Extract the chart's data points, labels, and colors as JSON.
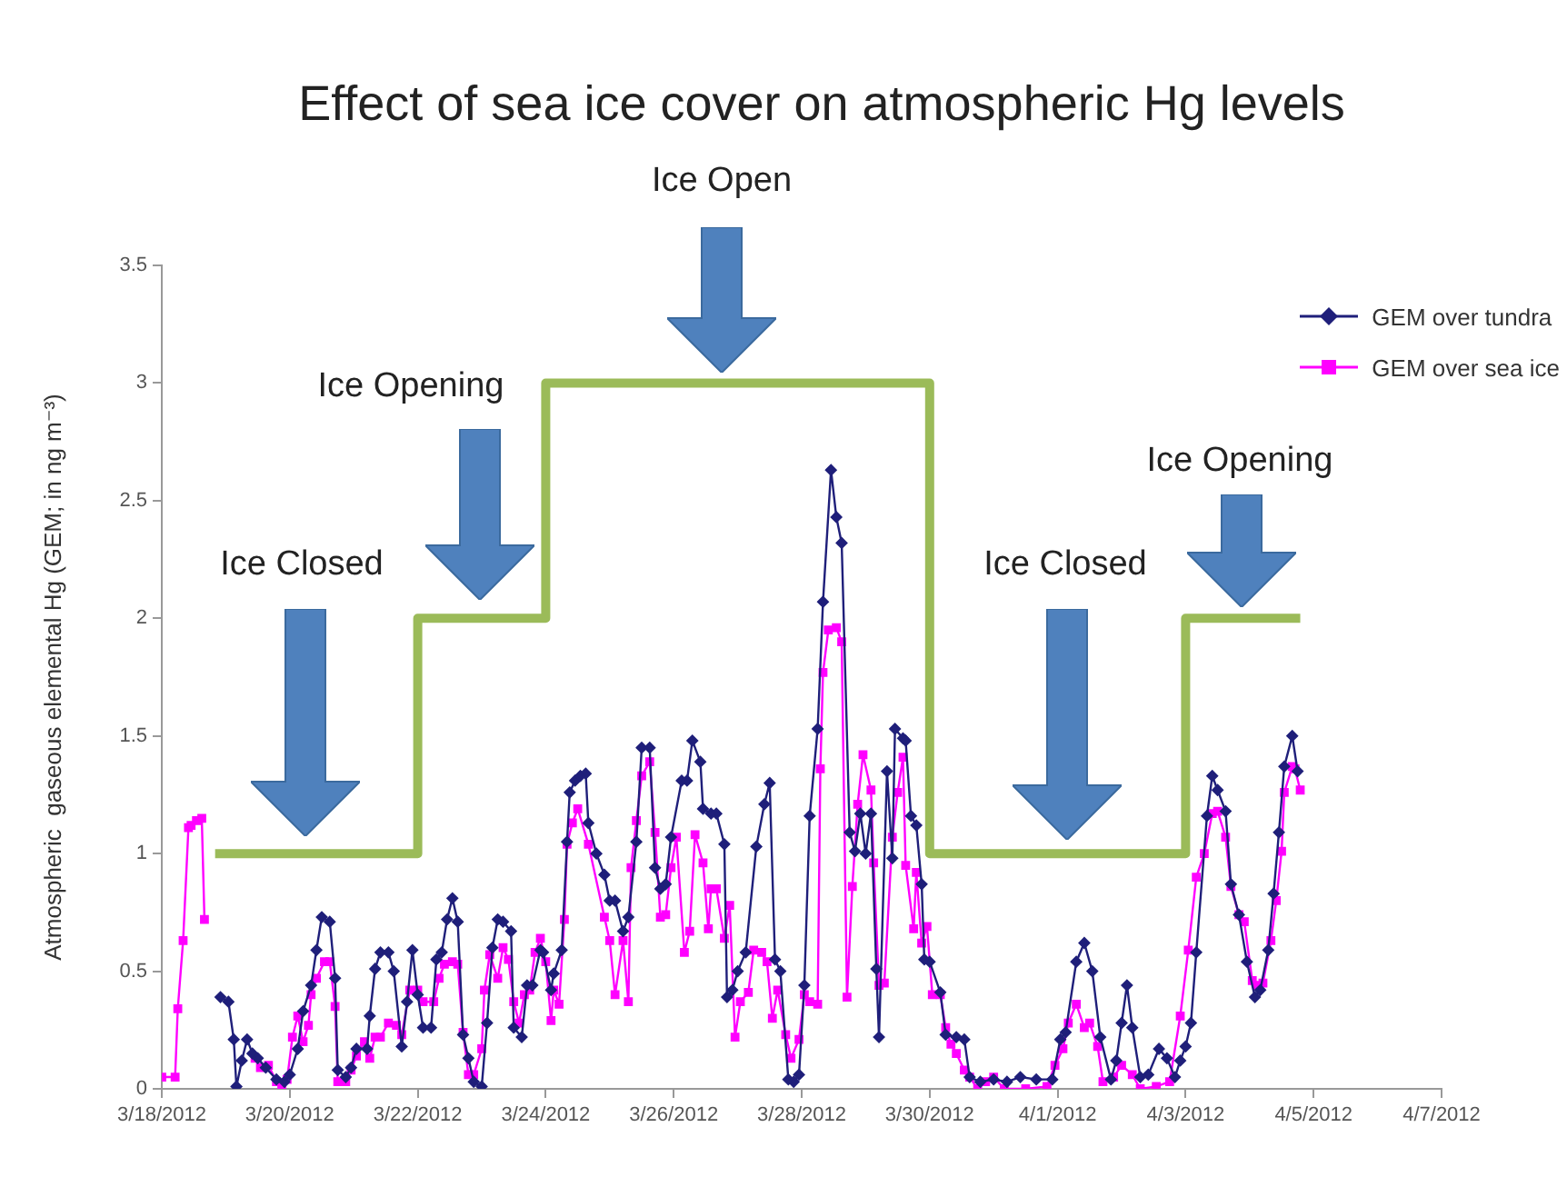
{
  "chart_data": {
    "type": "line",
    "title": "Effect of sea ice cover on atmospheric Hg levels",
    "ylabel": "Atmospheric  gaseous elemental Hg (GEM; in ng m⁻³)",
    "legend": "top right",
    "xlim": [
      "2012-03-18",
      "2012-04-07"
    ],
    "xticks": [
      {
        "value": "2012-03-18",
        "label": "3/18/2012"
      },
      {
        "value": "2012-03-20",
        "label": "3/20/2012"
      },
      {
        "value": "2012-03-22",
        "label": "3/22/2012"
      },
      {
        "value": "2012-03-24",
        "label": "3/24/2012"
      },
      {
        "value": "2012-03-26",
        "label": "3/26/2012"
      },
      {
        "value": "2012-03-28",
        "label": "3/28/2012"
      },
      {
        "value": "2012-03-30",
        "label": "3/30/2012"
      },
      {
        "value": "2012-04-01",
        "label": "4/1/2012"
      },
      {
        "value": "2012-04-03",
        "label": "4/3/2012"
      },
      {
        "value": "2012-04-05",
        "label": "4/5/2012"
      },
      {
        "value": "2012-04-07",
        "label": "4/7/2012"
      }
    ],
    "ylim": [
      0,
      3.5
    ],
    "yticks": [
      0,
      0.5,
      1,
      1.5,
      2,
      2.5,
      3,
      3.5
    ],
    "annotations": [
      "Ice Closed",
      "Ice Opening",
      "Ice Open",
      "Ice Closed",
      "Ice Opening"
    ],
    "series": [
      {
        "type": "step",
        "color": "#9bbb59",
        "x": [
          "2012-03-18T20:00",
          "2012-03-22T00:00",
          "2012-03-24T00:00",
          "2012-03-30T00:00",
          "2012-04-03T00:00",
          "2012-04-04T19:00"
        ],
        "values": [
          1,
          2,
          3,
          1,
          2,
          2
        ]
      },
      {
        "type": "line",
        "name": "GEM over tundra",
        "color": "#1f1f7a",
        "marker": "diamond",
        "x": [
          "2012-03-18T22:00",
          "2012-03-19T01:00",
          "2012-03-19T03:00",
          "2012-03-19T04:00",
          "2012-03-19T06:00",
          "2012-03-19T08:00",
          "2012-03-19T10:00",
          "2012-03-19T12:00",
          "2012-03-19T15:00",
          "2012-03-19T19:00",
          "2012-03-19T22:00",
          "2012-03-20T00:00",
          "2012-03-20T03:00",
          "2012-03-20T05:00",
          "2012-03-20T08:00",
          "2012-03-20T10:00",
          "2012-03-20T12:00",
          "2012-03-20T15:00",
          "2012-03-20T17:00",
          "2012-03-20T18:00",
          "2012-03-20T21:00",
          "2012-03-20T23:00",
          "2012-03-21T01:00",
          "2012-03-21T05:00",
          "2012-03-21T06:00",
          "2012-03-21T08:00",
          "2012-03-21T10:00",
          "2012-03-21T13:00",
          "2012-03-21T15:00",
          "2012-03-21T18:00",
          "2012-03-21T20:00",
          "2012-03-21T22:00",
          "2012-03-22T00:00",
          "2012-03-22T02:00",
          "2012-03-22T05:00",
          "2012-03-22T07:00",
          "2012-03-22T09:00",
          "2012-03-22T11:00",
          "2012-03-22T13:00",
          "2012-03-22T15:00",
          "2012-03-22T17:00",
          "2012-03-22T19:00",
          "2012-03-22T21:00",
          "2012-03-23T00:00",
          "2012-03-23T02:00",
          "2012-03-23T04:00",
          "2012-03-23T06:00",
          "2012-03-23T08:00",
          "2012-03-23T11:00",
          "2012-03-23T12:00",
          "2012-03-23T15:00",
          "2012-03-23T17:00",
          "2012-03-23T19:00",
          "2012-03-23T22:00",
          "2012-03-23T23:00",
          "2012-03-24T02:00",
          "2012-03-24T03:00",
          "2012-03-24T06:00",
          "2012-03-24T08:00",
          "2012-03-24T09:00",
          "2012-03-24T11:00",
          "2012-03-24T13:00",
          "2012-03-24T15:00",
          "2012-03-24T16:00",
          "2012-03-24T19:00",
          "2012-03-24T22:00",
          "2012-03-25T00:00",
          "2012-03-25T02:00",
          "2012-03-25T05:00",
          "2012-03-25T07:00",
          "2012-03-25T10:00",
          "2012-03-25T12:00",
          "2012-03-25T15:00",
          "2012-03-25T17:00",
          "2012-03-25T19:00",
          "2012-03-25T21:00",
          "2012-03-25T23:00",
          "2012-03-26T03:00",
          "2012-03-26T05:00",
          "2012-03-26T07:00",
          "2012-03-26T10:00",
          "2012-03-26T11:00",
          "2012-03-26T14:00",
          "2012-03-26T16:00",
          "2012-03-26T19:00",
          "2012-03-26T20:00",
          "2012-03-26T22:00",
          "2012-03-27T00:00",
          "2012-03-27T03:00",
          "2012-03-27T07:00",
          "2012-03-27T10:00",
          "2012-03-27T12:00",
          "2012-03-27T14:00",
          "2012-03-27T16:00",
          "2012-03-27T19:00",
          "2012-03-27T21:00",
          "2012-03-27T23:00",
          "2012-03-28T01:00",
          "2012-03-28T03:00",
          "2012-03-28T06:00",
          "2012-03-28T08:00",
          "2012-03-28T11:00",
          "2012-03-28T13:00",
          "2012-03-28T15:00",
          "2012-03-28T18:00",
          "2012-03-28T20:00",
          "2012-03-28T22:00",
          "2012-03-29T00:00",
          "2012-03-29T02:00",
          "2012-03-29T04:00",
          "2012-03-29T05:00",
          "2012-03-29T08:00",
          "2012-03-29T10:00",
          "2012-03-29T11:00",
          "2012-03-29T14:00",
          "2012-03-29T15:00",
          "2012-03-29T17:00",
          "2012-03-29T19:00",
          "2012-03-29T21:00",
          "2012-03-29T22:00",
          "2012-03-30T00:00",
          "2012-03-30T04:00",
          "2012-03-30T06:00",
          "2012-03-30T10:00",
          "2012-03-30T13:00",
          "2012-03-30T15:00",
          "2012-03-30T19:00",
          "2012-03-31T00:00",
          "2012-03-31T05:00",
          "2012-03-31T10:00",
          "2012-03-31T16:00",
          "2012-03-31T22:00",
          "2012-04-01T01:00",
          "2012-04-01T03:00",
          "2012-04-01T07:00",
          "2012-04-01T10:00",
          "2012-04-01T13:00",
          "2012-04-01T16:00",
          "2012-04-01T20:00",
          "2012-04-01T22:00",
          "2012-04-02T00:00",
          "2012-04-02T02:00",
          "2012-04-02T04:00",
          "2012-04-02T07:00",
          "2012-04-02T10:00",
          "2012-04-02T14:00",
          "2012-04-02T17:00",
          "2012-04-02T20:00",
          "2012-04-02T22:00",
          "2012-04-03T00:00",
          "2012-04-03T02:00",
          "2012-04-03T04:00",
          "2012-04-03T08:00",
          "2012-04-03T10:00",
          "2012-04-03T12:00",
          "2012-04-03T15:00",
          "2012-04-03T17:00",
          "2012-04-03T20:00",
          "2012-04-03T23:00",
          "2012-04-04T02:00",
          "2012-04-04T04:00",
          "2012-04-04T07:00",
          "2012-04-04T09:00",
          "2012-04-04T11:00",
          "2012-04-04T13:00",
          "2012-04-04T16:00",
          "2012-04-04T18:00"
        ],
        "values": [
          0.39,
          0.37,
          0.21,
          0.01,
          0.12,
          0.21,
          0.15,
          0.13,
          0.09,
          0.04,
          0.03,
          0.06,
          0.17,
          0.33,
          0.44,
          0.59,
          0.73,
          0.71,
          0.47,
          0.08,
          0.05,
          0.09,
          0.17,
          0.17,
          0.31,
          0.51,
          0.58,
          0.58,
          0.5,
          0.18,
          0.37,
          0.59,
          0.4,
          0.26,
          0.26,
          0.55,
          0.58,
          0.72,
          0.81,
          0.71,
          0.23,
          0.13,
          0.03,
          0.01,
          0.28,
          0.6,
          0.72,
          0.71,
          0.67,
          0.26,
          0.22,
          0.44,
          0.44,
          0.59,
          0.58,
          0.42,
          0.49,
          0.59,
          1.05,
          1.26,
          1.31,
          1.33,
          1.34,
          1.13,
          1.0,
          0.91,
          0.8,
          0.8,
          0.67,
          0.73,
          1.05,
          1.45,
          1.45,
          0.94,
          0.85,
          0.87,
          1.07,
          1.31,
          1.31,
          1.48,
          1.39,
          1.19,
          1.17,
          1.17,
          1.04,
          0.39,
          0.42,
          0.5,
          0.58,
          1.03,
          1.21,
          1.3,
          0.55,
          0.5,
          0.04,
          0.03,
          0.06,
          0.44,
          1.16,
          1.53,
          2.07,
          2.63,
          2.43,
          2.32,
          1.09,
          1.01,
          1.17,
          1.0,
          1.17,
          0.51,
          0.22,
          1.35,
          0.98,
          1.53,
          1.49,
          1.48,
          1.16,
          1.12,
          0.87,
          0.55,
          0.54,
          0.41,
          0.23,
          0.22,
          0.21,
          0.05,
          0.03,
          0.04,
          0.03,
          0.05,
          0.04,
          0.04,
          0.21,
          0.24,
          0.54,
          0.62,
          0.5,
          0.22,
          0.04,
          0.12,
          0.28,
          0.44,
          0.26,
          0.05,
          0.06,
          0.17,
          0.13,
          0.05,
          0.12,
          0.18,
          0.28,
          0.58,
          1.16,
          1.33,
          1.27,
          1.18,
          0.87,
          0.74,
          0.54,
          0.39,
          0.42,
          0.59,
          0.83,
          1.09,
          1.37,
          1.5,
          1.35
        ]
      },
      {
        "type": "line",
        "name": "GEM over sea ice",
        "color": "#ff00ff",
        "marker": "square",
        "x": [
          "2012-03-18T00:00",
          "2012-03-18T05:00",
          "2012-03-18T06:00",
          "2012-03-18T08:00",
          "2012-03-18T10:00",
          "2012-03-18T11:00",
          "2012-03-18T13:00",
          "2012-03-18T15:00",
          "2012-03-18T16:00",
          "2012-03-19T00:00",
          "2012-03-19T11:00",
          "2012-03-19T13:00",
          "2012-03-19T16:00",
          "2012-03-19T19:00",
          "2012-03-19T21:00",
          "2012-03-19T23:00",
          "2012-03-20T01:00",
          "2012-03-20T03:00",
          "2012-03-20T05:00",
          "2012-03-20T07:00",
          "2012-03-20T08:00",
          "2012-03-20T10:00",
          "2012-03-20T13:00",
          "2012-03-20T15:00",
          "2012-03-20T17:00",
          "2012-03-20T18:00",
          "2012-03-20T21:00",
          "2012-03-20T23:00",
          "2012-03-21T01:00",
          "2012-03-21T04:00",
          "2012-03-21T06:00",
          "2012-03-21T08:00",
          "2012-03-21T10:00",
          "2012-03-21T13:00",
          "2012-03-21T16:00",
          "2012-03-21T18:00",
          "2012-03-21T21:00",
          "2012-03-22T00:00",
          "2012-03-22T02:00",
          "2012-03-22T06:00",
          "2012-03-22T08:00",
          "2012-03-22T10:00",
          "2012-03-22T13:00",
          "2012-03-22T15:00",
          "2012-03-22T17:00",
          "2012-03-22T19:00",
          "2012-03-22T21:00",
          "2012-03-23T00:00",
          "2012-03-23T01:00",
          "2012-03-23T03:00",
          "2012-03-23T06:00",
          "2012-03-23T08:00",
          "2012-03-23T10:00",
          "2012-03-23T12:00",
          "2012-03-23T14:00",
          "2012-03-23T16:00",
          "2012-03-23T18:00",
          "2012-03-23T20:00",
          "2012-03-23T22:00",
          "2012-03-24T00:00",
          "2012-03-24T02:00",
          "2012-03-24T03:00",
          "2012-03-24T05:00",
          "2012-03-24T07:00",
          "2012-03-24T08:00",
          "2012-03-24T10:00",
          "2012-03-24T12:00",
          "2012-03-24T16:00",
          "2012-03-24T22:00",
          "2012-03-25T00:00",
          "2012-03-25T02:00",
          "2012-03-25T05:00",
          "2012-03-25T07:00",
          "2012-03-25T08:00",
          "2012-03-25T10:00",
          "2012-03-25T12:00",
          "2012-03-25T15:00",
          "2012-03-25T17:00",
          "2012-03-25T19:00",
          "2012-03-25T21:00",
          "2012-03-25T23:00",
          "2012-03-26T01:00",
          "2012-03-26T04:00",
          "2012-03-26T06:00",
          "2012-03-26T08:00",
          "2012-03-26T11:00",
          "2012-03-26T13:00",
          "2012-03-26T14:00",
          "2012-03-26T16:00",
          "2012-03-26T19:00",
          "2012-03-26T21:00",
          "2012-03-26T23:00",
          "2012-03-27T01:00",
          "2012-03-27T04:00",
          "2012-03-27T06:00",
          "2012-03-27T09:00",
          "2012-03-27T11:00",
          "2012-03-27T13:00",
          "2012-03-27T15:00",
          "2012-03-27T18:00",
          "2012-03-27T20:00",
          "2012-03-27T23:00",
          "2012-03-28T01:00",
          "2012-03-28T03:00",
          "2012-03-28T06:00",
          "2012-03-28T07:00",
          "2012-03-28T08:00",
          "2012-03-28T10:00",
          "2012-03-28T13:00",
          "2012-03-28T15:00",
          "2012-03-28T17:00",
          "2012-03-28T19:00",
          "2012-03-28T21:00",
          "2012-03-28T23:00",
          "2012-03-29T02:00",
          "2012-03-29T03:00",
          "2012-03-29T05:00",
          "2012-03-29T07:00",
          "2012-03-29T10:00",
          "2012-03-29T12:00",
          "2012-03-29T14:00",
          "2012-03-29T15:00",
          "2012-03-29T18:00",
          "2012-03-29T19:00",
          "2012-03-29T21:00",
          "2012-03-29T23:00",
          "2012-03-30T01:00",
          "2012-03-30T04:00",
          "2012-03-30T06:00",
          "2012-03-30T08:00",
          "2012-03-30T10:00",
          "2012-03-30T13:00",
          "2012-03-30T15:00",
          "2012-03-30T18:00",
          "2012-03-30T21:00",
          "2012-03-31T00:00",
          "2012-03-31T04:00",
          "2012-03-31T12:00",
          "2012-03-31T20:00",
          "2012-03-31T23:00",
          "2012-04-01T02:00",
          "2012-04-01T04:00",
          "2012-04-01T07:00",
          "2012-04-01T10:00",
          "2012-04-01T12:00",
          "2012-04-01T15:00",
          "2012-04-01T17:00",
          "2012-04-01T21:00",
          "2012-04-02T00:00",
          "2012-04-02T04:00",
          "2012-04-02T07:00",
          "2012-04-02T13:00",
          "2012-04-02T18:00",
          "2012-04-02T22:00",
          "2012-04-03T01:00",
          "2012-04-03T04:00",
          "2012-04-03T07:00",
          "2012-04-03T10:00",
          "2012-04-03T12:00",
          "2012-04-03T15:00",
          "2012-04-03T17:00",
          "2012-04-03T20:00",
          "2012-04-03T22:00",
          "2012-04-04T01:00",
          "2012-04-04T03:00",
          "2012-04-04T05:00",
          "2012-04-04T08:00",
          "2012-04-04T10:00",
          "2012-04-04T12:00",
          "2012-04-04T13:00",
          "2012-04-04T16:00",
          "2012-04-04T17:00",
          "2012-04-04T19:00"
        ],
        "values": [
          0.05,
          0.05,
          0.34,
          0.63,
          1.11,
          1.12,
          1.14,
          1.15,
          0.72,
          null,
          0.13,
          0.09,
          0.1,
          0.03,
          0.0,
          0.04,
          0.22,
          0.31,
          0.2,
          0.27,
          0.4,
          0.47,
          0.54,
          0.54,
          0.35,
          0.03,
          0.03,
          0.08,
          0.14,
          0.2,
          0.13,
          0.22,
          0.22,
          0.28,
          0.27,
          0.23,
          0.42,
          0.42,
          0.37,
          0.37,
          0.47,
          0.53,
          0.54,
          0.53,
          0.24,
          0.06,
          0.06,
          0.17,
          0.42,
          0.57,
          0.47,
          0.6,
          0.55,
          0.37,
          0.28,
          0.4,
          0.42,
          0.58,
          0.64,
          0.54,
          0.29,
          0.42,
          0.36,
          0.72,
          1.04,
          1.13,
          1.19,
          1.04,
          0.73,
          0.63,
          0.4,
          0.63,
          0.37,
          0.94,
          1.14,
          1.33,
          1.39,
          1.09,
          0.73,
          0.74,
          0.94,
          1.07,
          0.58,
          0.67,
          1.08,
          0.96,
          0.68,
          0.85,
          0.85,
          0.64,
          0.78,
          0.22,
          0.37,
          0.41,
          0.59,
          0.58,
          0.54,
          0.3,
          0.42,
          0.23,
          0.13,
          0.21,
          0.4,
          0.37,
          0.36,
          1.36,
          1.77,
          1.95,
          1.96,
          1.9,
          0.39,
          0.86,
          1.21,
          1.42,
          1.27,
          0.96,
          0.44,
          0.45,
          1.07,
          1.26,
          1.41,
          0.95,
          0.68,
          0.92,
          0.62,
          0.69,
          0.4,
          0.4,
          0.26,
          0.19,
          0.15,
          0.08,
          0.05,
          0.0,
          0.03,
          0.05,
          0.0,
          0.0,
          0.01,
          0.1,
          0.17,
          0.28,
          0.36,
          0.26,
          0.28,
          0.18,
          0.03,
          0.05,
          0.1,
          0.06,
          0.0,
          0.01,
          0.03,
          0.31,
          0.59,
          0.9,
          1.0,
          1.17,
          1.18,
          1.07,
          0.86,
          0.74,
          0.71,
          0.46,
          0.44,
          0.45,
          0.63,
          0.8,
          1.01,
          1.26,
          1.37,
          1.36,
          1.27
        ]
      }
    ]
  }
}
